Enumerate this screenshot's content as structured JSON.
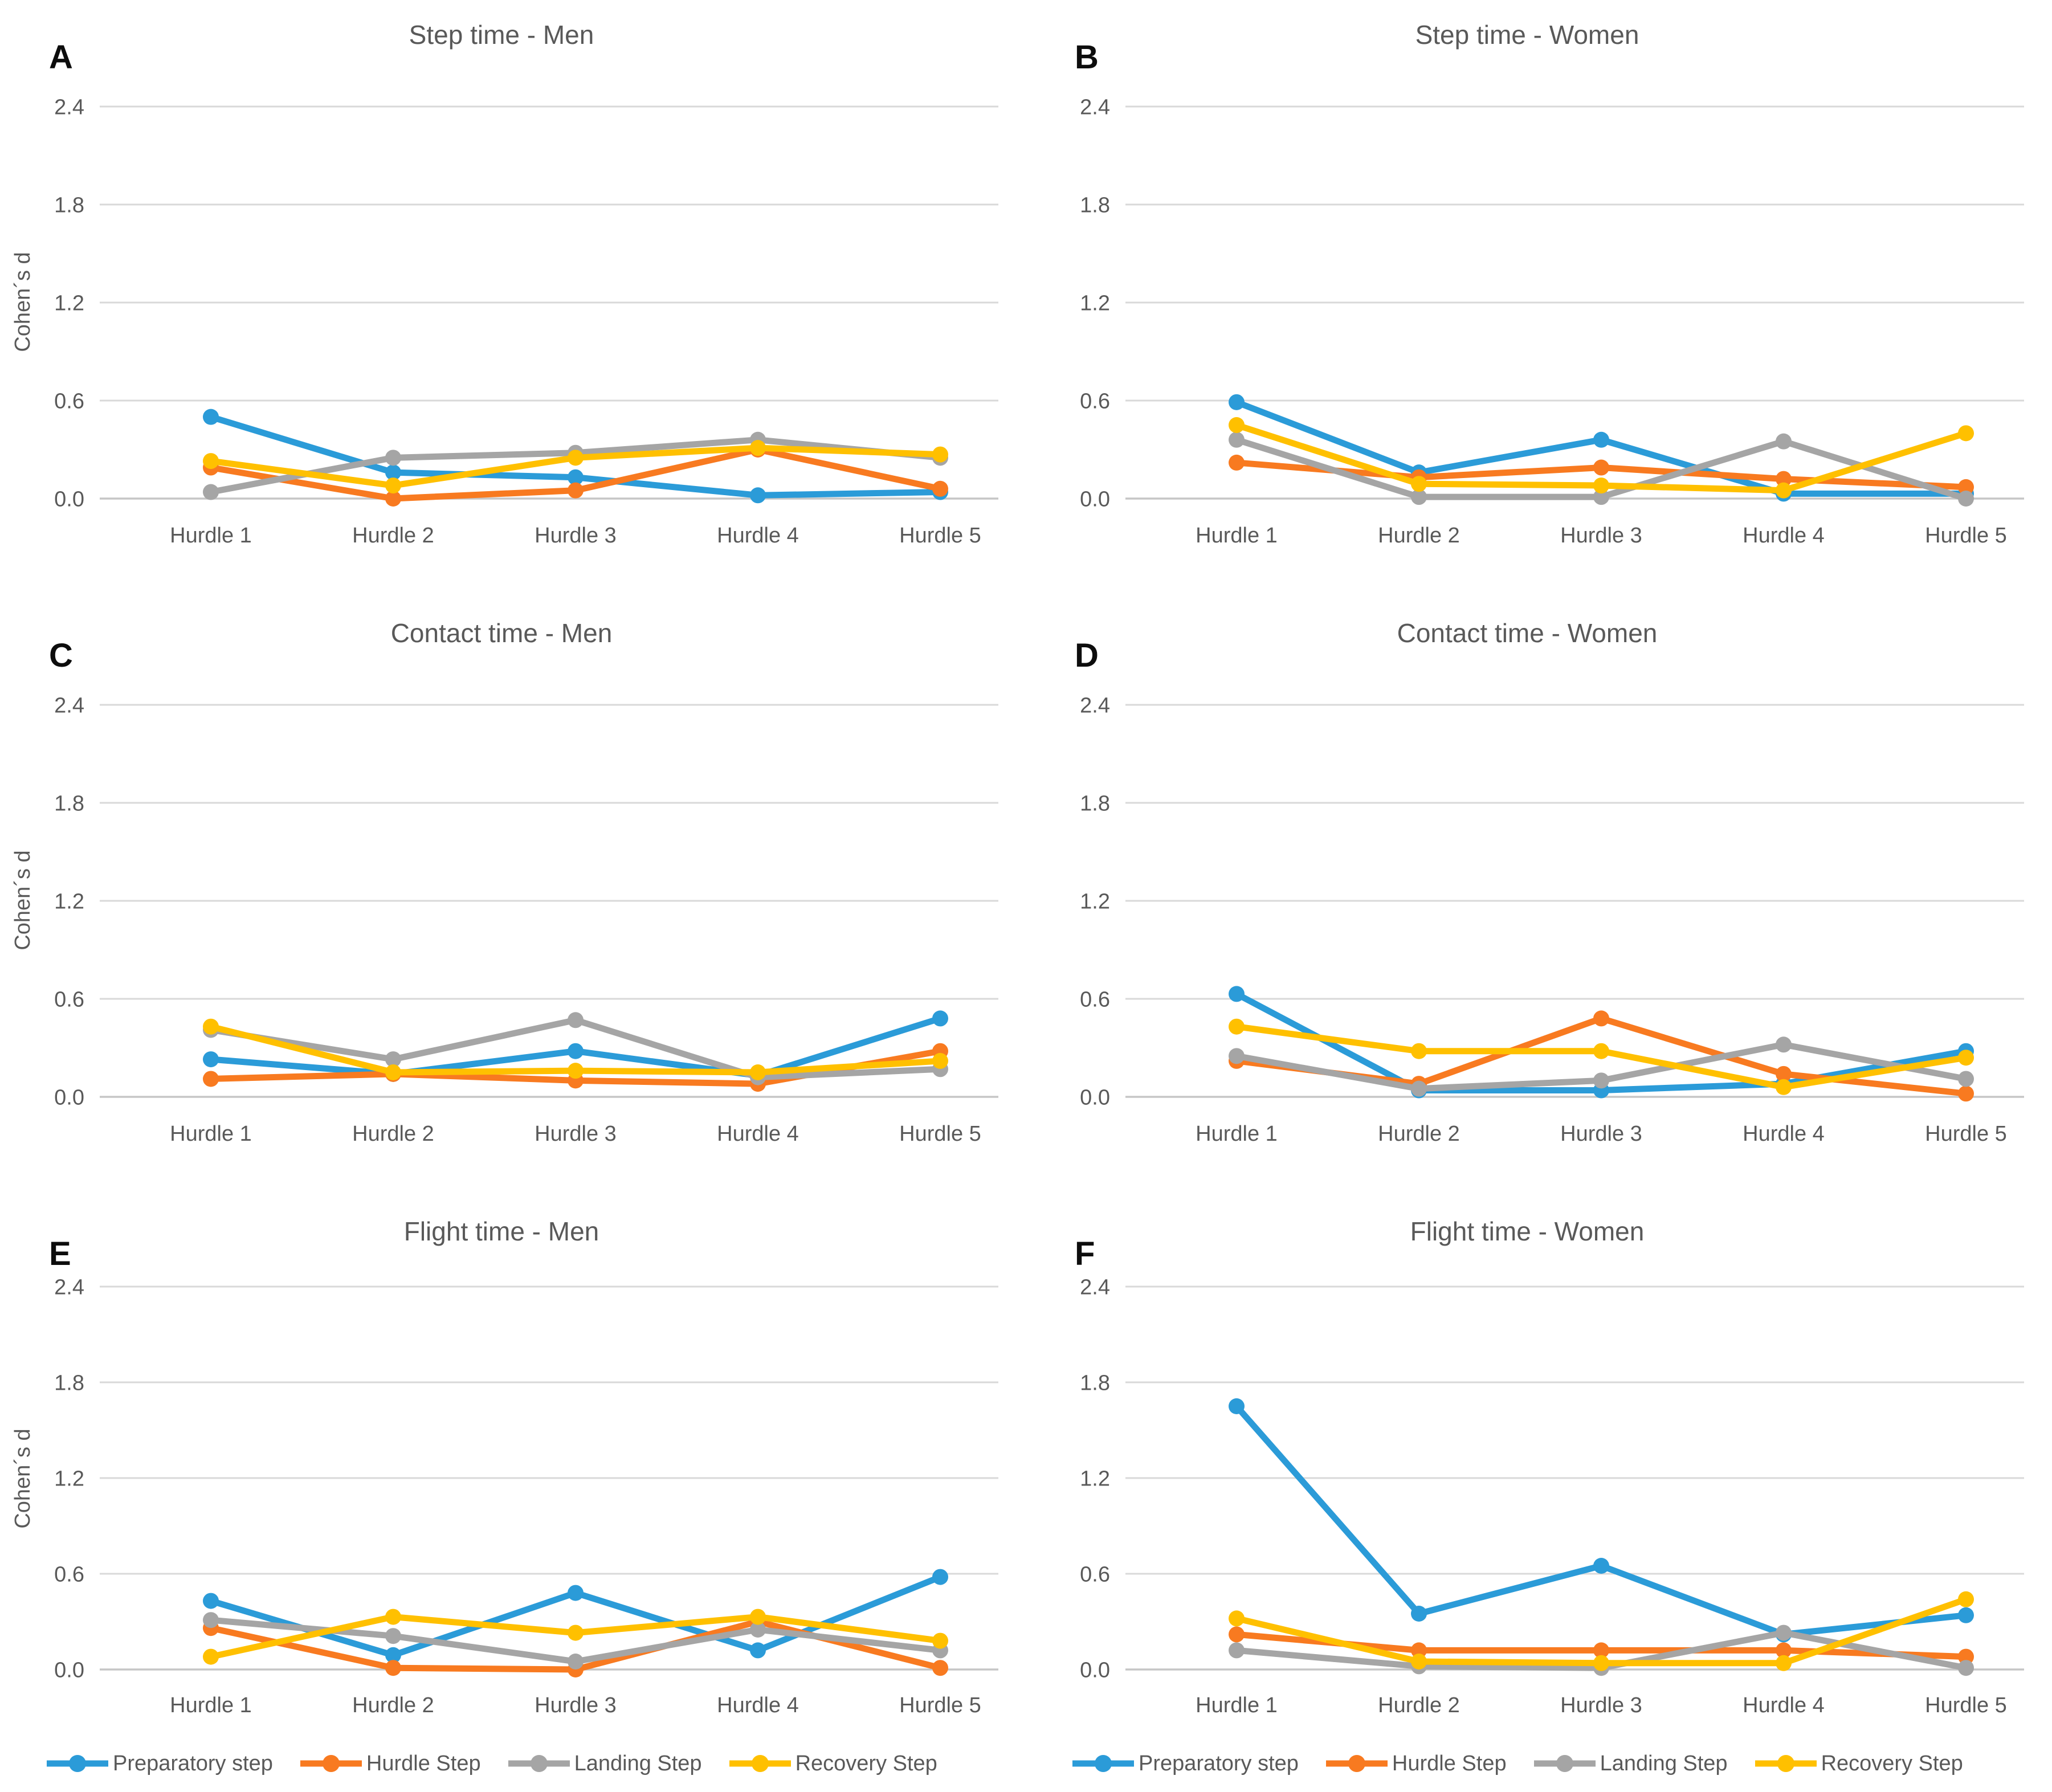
{
  "colors": {
    "blue": "#2B9BD8",
    "orange": "#F87A20",
    "gray": "#A5A5A5",
    "yellow": "#FFC000",
    "gridline": "#D9D9D9",
    "axis_line": "#C6C6C6",
    "text_gray": "#595959",
    "letter_black": "#0d0d0d"
  },
  "legend": {
    "items": [
      {
        "label": "Preparatory step",
        "color": "blue"
      },
      {
        "label": "Hurdle Step",
        "color": "orange"
      },
      {
        "label": "Landing Step",
        "color": "gray"
      },
      {
        "label": "Recovery Step",
        "color": "yellow"
      }
    ]
  },
  "chart_data": [
    {
      "id": "A",
      "type": "line",
      "title": "Step time - Men",
      "ylabel": "Cohen´s d",
      "categories": [
        "Hurdle 1",
        "Hurdle 2",
        "Hurdle 3",
        "Hurdle 4",
        "Hurdle 5"
      ],
      "y_ticks": [
        "0.0",
        "0.6",
        "1.2",
        "1.8",
        "2.4"
      ],
      "y_tick_step": 0.6,
      "ylim": [
        0,
        2.4
      ],
      "series": [
        {
          "name": "Preparatory step",
          "color": "blue",
          "values": [
            0.5,
            0.16,
            0.13,
            0.02,
            0.04
          ]
        },
        {
          "name": "Hurdle Step",
          "color": "orange",
          "values": [
            0.19,
            0.0,
            0.05,
            0.3,
            0.06
          ]
        },
        {
          "name": "Landing Step",
          "color": "gray",
          "values": [
            0.04,
            0.25,
            0.28,
            0.36,
            0.25
          ]
        },
        {
          "name": "Recovery Step",
          "color": "yellow",
          "values": [
            0.23,
            0.08,
            0.25,
            0.31,
            0.27
          ]
        }
      ]
    },
    {
      "id": "B",
      "type": "line",
      "title": "Step time - Women",
      "ylabel": "",
      "categories": [
        "Hurdle 1",
        "Hurdle 2",
        "Hurdle 3",
        "Hurdle 4",
        "Hurdle 5"
      ],
      "y_ticks": [
        "0.0",
        "0.6",
        "1.2",
        "1.8",
        "2.4"
      ],
      "y_tick_step": 0.6,
      "ylim": [
        0,
        2.4
      ],
      "series": [
        {
          "name": "Preparatory step",
          "color": "blue",
          "values": [
            0.59,
            0.16,
            0.36,
            0.03,
            0.03
          ]
        },
        {
          "name": "Hurdle Step",
          "color": "orange",
          "values": [
            0.22,
            0.13,
            0.19,
            0.12,
            0.07
          ]
        },
        {
          "name": "Landing Step",
          "color": "gray",
          "values": [
            0.36,
            0.01,
            0.01,
            0.35,
            0.0
          ]
        },
        {
          "name": "Recovery Step",
          "color": "yellow",
          "values": [
            0.45,
            0.09,
            0.08,
            0.05,
            0.4
          ]
        }
      ]
    },
    {
      "id": "C",
      "type": "line",
      "title": "Contact time - Men",
      "ylabel": "Cohen´s d",
      "categories": [
        "Hurdle 1",
        "Hurdle 2",
        "Hurdle 3",
        "Hurdle 4",
        "Hurdle 5"
      ],
      "y_ticks": [
        "0.0",
        "0.6",
        "1.2",
        "1.8",
        "2.4"
      ],
      "y_tick_step": 0.6,
      "ylim": [
        0,
        2.4
      ],
      "series": [
        {
          "name": "Preparatory step",
          "color": "blue",
          "values": [
            0.23,
            0.14,
            0.28,
            0.13,
            0.48
          ]
        },
        {
          "name": "Hurdle Step",
          "color": "orange",
          "values": [
            0.11,
            0.14,
            0.1,
            0.08,
            0.28
          ]
        },
        {
          "name": "Landing Step",
          "color": "gray",
          "values": [
            0.41,
            0.23,
            0.47,
            0.12,
            0.17
          ]
        },
        {
          "name": "Recovery Step",
          "color": "yellow",
          "values": [
            0.43,
            0.15,
            0.16,
            0.15,
            0.22
          ]
        }
      ]
    },
    {
      "id": "D",
      "type": "line",
      "title": "Contact time - Women",
      "ylabel": "",
      "categories": [
        "Hurdle 1",
        "Hurdle 2",
        "Hurdle 3",
        "Hurdle 4",
        "Hurdle 5"
      ],
      "y_ticks": [
        "0.0",
        "0.6",
        "1.2",
        "1.8",
        "2.4"
      ],
      "y_tick_step": 0.6,
      "ylim": [
        0,
        2.4
      ],
      "series": [
        {
          "name": "Preparatory step",
          "color": "blue",
          "values": [
            0.63,
            0.04,
            0.04,
            0.08,
            0.28
          ]
        },
        {
          "name": "Hurdle Step",
          "color": "orange",
          "values": [
            0.22,
            0.08,
            0.48,
            0.14,
            0.02
          ]
        },
        {
          "name": "Landing Step",
          "color": "gray",
          "values": [
            0.25,
            0.05,
            0.1,
            0.32,
            0.11
          ]
        },
        {
          "name": "Recovery Step",
          "color": "yellow",
          "values": [
            0.43,
            0.28,
            0.28,
            0.06,
            0.24
          ]
        }
      ]
    },
    {
      "id": "E",
      "type": "line",
      "title": "Flight time - Men",
      "ylabel": "Cohen´s d",
      "categories": [
        "Hurdle 1",
        "Hurdle 2",
        "Hurdle 3",
        "Hurdle 4",
        "Hurdle 5"
      ],
      "y_ticks": [
        "0.0",
        "0.6",
        "1.2",
        "1.8",
        "2.4"
      ],
      "y_tick_step": 0.6,
      "ylim": [
        0,
        2.4
      ],
      "series": [
        {
          "name": "Preparatory step",
          "color": "blue",
          "values": [
            0.43,
            0.09,
            0.48,
            0.12,
            0.58
          ]
        },
        {
          "name": "Hurdle Step",
          "color": "orange",
          "values": [
            0.26,
            0.01,
            0.0,
            0.3,
            0.01
          ]
        },
        {
          "name": "Landing Step",
          "color": "gray",
          "values": [
            0.31,
            0.21,
            0.05,
            0.25,
            0.12
          ]
        },
        {
          "name": "Recovery Step",
          "color": "yellow",
          "values": [
            0.08,
            0.33,
            0.23,
            0.33,
            0.18
          ]
        }
      ]
    },
    {
      "id": "F",
      "type": "line",
      "title": "Flight time - Women",
      "ylabel": "",
      "categories": [
        "Hurdle 1",
        "Hurdle 2",
        "Hurdle 3",
        "Hurdle 4",
        "Hurdle 5"
      ],
      "y_ticks": [
        "0.0",
        "0.6",
        "1.2",
        "1.8",
        "2.4"
      ],
      "y_tick_step": 0.6,
      "ylim": [
        0,
        2.4
      ],
      "series": [
        {
          "name": "Preparatory step",
          "color": "blue",
          "values": [
            1.65,
            0.35,
            0.65,
            0.22,
            0.34
          ]
        },
        {
          "name": "Hurdle Step",
          "color": "orange",
          "values": [
            0.22,
            0.12,
            0.12,
            0.12,
            0.08
          ]
        },
        {
          "name": "Landing Step",
          "color": "gray",
          "values": [
            0.12,
            0.02,
            0.01,
            0.23,
            0.01
          ]
        },
        {
          "name": "Recovery Step",
          "color": "yellow",
          "values": [
            0.32,
            0.05,
            0.04,
            0.04,
            0.44
          ]
        }
      ]
    }
  ]
}
